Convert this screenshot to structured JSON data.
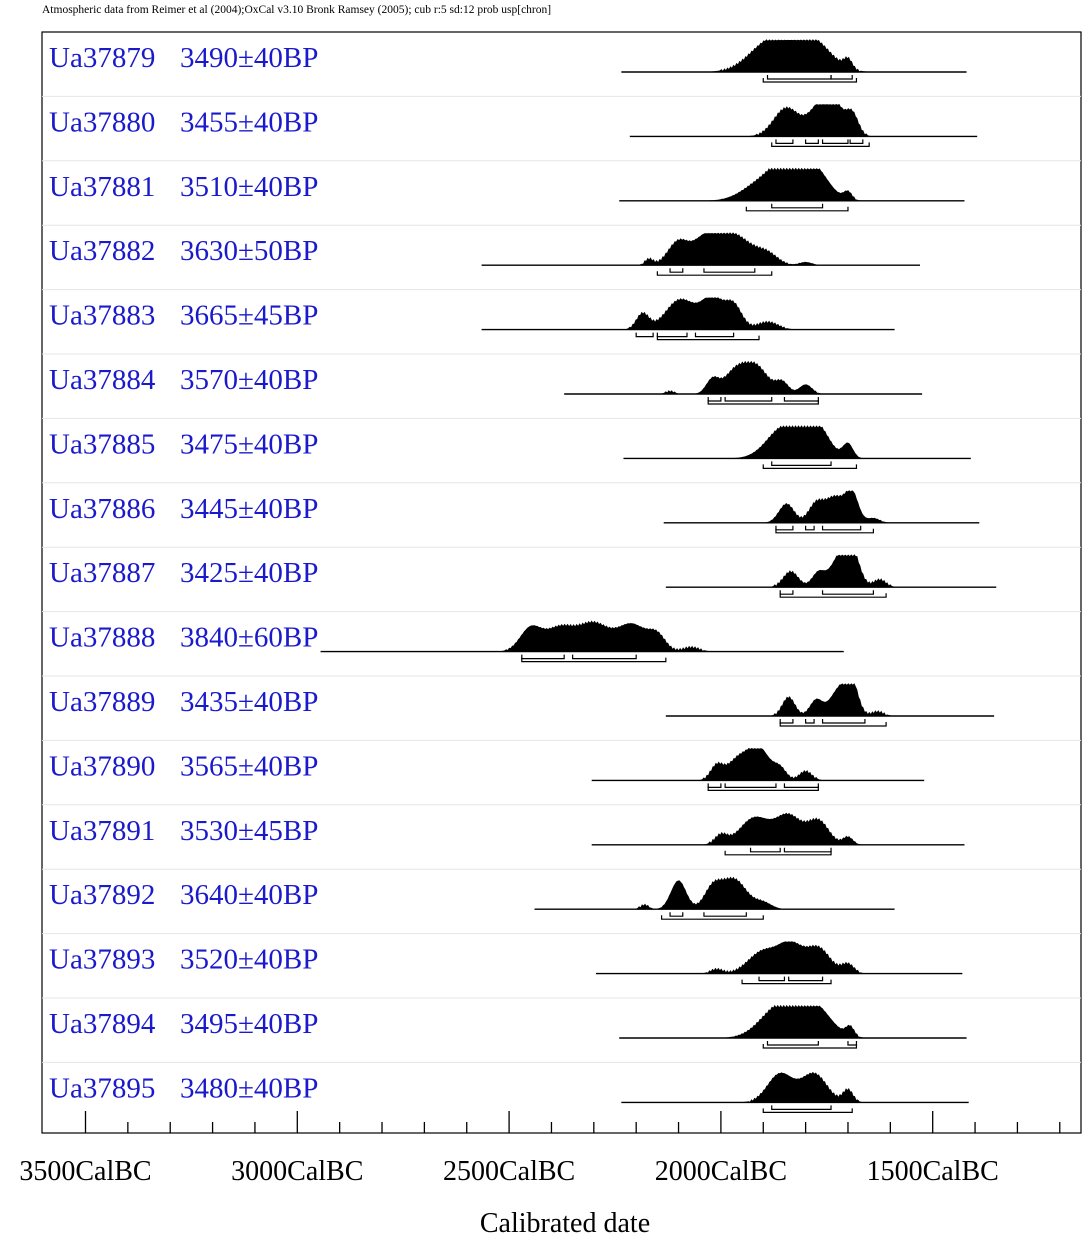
{
  "header": "Atmospheric data from Reimer et al (2004);OxCal v3.10 Bronk Ramsey (2005); cub r:5 sd:12 prob usp[chron]",
  "chart_data": {
    "type": "area",
    "title": "",
    "xlabel": "Calibrated date",
    "ylabel": "",
    "xlim_bc": [
      3600,
      1050
    ],
    "x_ticks": [
      {
        "value": 3500,
        "label": "3500CalBC"
      },
      {
        "value": 3000,
        "label": "3000CalBC"
      },
      {
        "value": 2500,
        "label": "2500CalBC"
      },
      {
        "value": 2000,
        "label": "2000CalBC"
      },
      {
        "value": 1500,
        "label": "1500CalBC"
      }
    ],
    "minor_tick_step_bc": 100,
    "label_color": "#1a1acc",
    "series": [
      {
        "sample": "Ua37879",
        "age": "3490±40BP",
        "line": [
          2235,
          1420
        ],
        "peaks": [
          [
            1880,
            1,
            50
          ],
          [
            1785,
            0.95,
            45
          ],
          [
            1700,
            0.3,
            10
          ]
        ],
        "ranges": [
          [
            1890,
            1740
          ],
          [
            1740,
            1690
          ]
        ],
        "outer": [
          1900,
          1680
        ]
      },
      {
        "sample": "Ua37880",
        "age": "3455±40BP",
        "line": [
          2215,
          1395
        ],
        "peaks": [
          [
            1845,
            0.9,
            30
          ],
          [
            1770,
            0.8,
            25
          ],
          [
            1735,
            1,
            22
          ],
          [
            1690,
            0.7,
            15
          ]
        ],
        "ranges": [
          [
            1870,
            1830
          ],
          [
            1800,
            1770
          ],
          [
            1760,
            1700
          ],
          [
            1695,
            1665
          ]
        ],
        "outer": [
          1880,
          1650
        ]
      },
      {
        "sample": "Ua37881",
        "age": "3510±40BP",
        "line": [
          2240,
          1425
        ],
        "peaks": [
          [
            1900,
            0.6,
            45
          ],
          [
            1840,
            1,
            35
          ],
          [
            1780,
            0.95,
            35
          ],
          [
            1700,
            0.25,
            10
          ]
        ],
        "ranges": [
          [
            1880,
            1760
          ]
        ],
        "outer": [
          1940,
          1700
        ]
      },
      {
        "sample": "Ua37882",
        "age": "3630±50BP",
        "line": [
          2565,
          1530
        ],
        "peaks": [
          [
            2170,
            0.2,
            10
          ],
          [
            2100,
            0.75,
            25
          ],
          [
            2040,
            0.6,
            25
          ],
          [
            1975,
            1,
            45
          ],
          [
            1890,
            0.3,
            25
          ],
          [
            1800,
            0.1,
            15
          ]
        ],
        "ranges": [
          [
            2120,
            2090
          ],
          [
            2040,
            1920
          ]
        ],
        "outer": [
          2150,
          1880
        ]
      },
      {
        "sample": "Ua37883",
        "age": "3665±45BP",
        "line": [
          2565,
          1590
        ],
        "peaks": [
          [
            2185,
            0.5,
            15
          ],
          [
            2095,
            0.95,
            35
          ],
          [
            2020,
            0.95,
            25
          ],
          [
            1970,
            0.75,
            20
          ],
          [
            1890,
            0.25,
            25
          ]
        ],
        "ranges": [
          [
            2200,
            2160
          ],
          [
            2150,
            2080
          ],
          [
            2060,
            1970
          ]
        ],
        "outer": [
          2150,
          1910
        ]
      },
      {
        "sample": "Ua37884",
        "age": "3570±40BP",
        "line": [
          2370,
          1525
        ],
        "peaks": [
          [
            2120,
            0.1,
            10
          ],
          [
            2020,
            0.45,
            15
          ],
          [
            1970,
            0.6,
            25
          ],
          [
            1920,
            0.9,
            30
          ],
          [
            1855,
            0.35,
            15
          ],
          [
            1800,
            0.3,
            15
          ]
        ],
        "ranges": [
          [
            2030,
            2000
          ],
          [
            1990,
            1880
          ],
          [
            1850,
            1770
          ]
        ],
        "outer": [
          2030,
          1770
        ]
      },
      {
        "sample": "Ua37885",
        "age": "3475±40BP",
        "line": [
          2230,
          1410
        ],
        "peaks": [
          [
            1850,
            1,
            40
          ],
          [
            1775,
            1,
            30
          ],
          [
            1700,
            0.45,
            12
          ]
        ],
        "ranges": [
          [
            1880,
            1740
          ]
        ],
        "outer": [
          1900,
          1680
        ]
      },
      {
        "sample": "Ua37886",
        "age": "3445±40BP",
        "line": [
          2135,
          1390
        ],
        "peaks": [
          [
            1845,
            0.6,
            18
          ],
          [
            1775,
            0.6,
            18
          ],
          [
            1730,
            0.8,
            22
          ],
          [
            1690,
            0.9,
            15
          ],
          [
            1640,
            0.15,
            15
          ]
        ],
        "ranges": [
          [
            1870,
            1830
          ],
          [
            1800,
            1780
          ],
          [
            1760,
            1670
          ]
        ],
        "outer": [
          1870,
          1640
        ]
      },
      {
        "sample": "Ua37887",
        "age": "3425±40BP",
        "line": [
          2130,
          1350
        ],
        "peaks": [
          [
            1835,
            0.5,
            18
          ],
          [
            1770,
            0.45,
            15
          ],
          [
            1720,
            0.9,
            22
          ],
          [
            1690,
            1,
            18
          ],
          [
            1625,
            0.25,
            15
          ]
        ],
        "ranges": [
          [
            1860,
            1830
          ],
          [
            1760,
            1640
          ]
        ],
        "outer": [
          1860,
          1610
        ]
      },
      {
        "sample": "Ua37888",
        "age": "3840±60BP",
        "line": [
          2945,
          1710
        ],
        "peaks": [
          [
            2450,
            0.7,
            25
          ],
          [
            2380,
            0.75,
            35
          ],
          [
            2300,
            0.85,
            35
          ],
          [
            2210,
            0.85,
            35
          ],
          [
            2150,
            0.45,
            20
          ],
          [
            2070,
            0.15,
            20
          ]
        ],
        "ranges": [
          [
            2470,
            2370
          ],
          [
            2350,
            2200
          ]
        ],
        "outer": [
          2470,
          2130
        ]
      },
      {
        "sample": "Ua37889",
        "age": "3435±40BP",
        "line": [
          2130,
          1355
        ],
        "peaks": [
          [
            1840,
            0.6,
            15
          ],
          [
            1775,
            0.5,
            15
          ],
          [
            1720,
            0.85,
            22
          ],
          [
            1690,
            0.9,
            15
          ],
          [
            1630,
            0.15,
            15
          ]
        ],
        "ranges": [
          [
            1860,
            1830
          ],
          [
            1800,
            1780
          ],
          [
            1760,
            1660
          ]
        ],
        "outer": [
          1860,
          1610
        ]
      },
      {
        "sample": "Ua37890",
        "age": "3565±40BP",
        "line": [
          2305,
          1520
        ],
        "peaks": [
          [
            2010,
            0.45,
            15
          ],
          [
            1960,
            0.65,
            25
          ],
          [
            1910,
            1,
            25
          ],
          [
            1860,
            0.35,
            15
          ],
          [
            1800,
            0.3,
            15
          ]
        ],
        "ranges": [
          [
            2030,
            2000
          ],
          [
            1990,
            1870
          ],
          [
            1850,
            1770
          ]
        ],
        "outer": [
          2030,
          1770
        ]
      },
      {
        "sample": "Ua37891",
        "age": "3530±45BP",
        "line": [
          2305,
          1425
        ],
        "peaks": [
          [
            2000,
            0.3,
            15
          ],
          [
            1920,
            0.85,
            35
          ],
          [
            1840,
            0.9,
            30
          ],
          [
            1770,
            0.75,
            25
          ],
          [
            1700,
            0.25,
            12
          ]
        ],
        "ranges": [
          [
            1930,
            1860
          ],
          [
            1850,
            1740
          ]
        ],
        "outer": [
          1990,
          1740
        ]
      },
      {
        "sample": "Ua37892",
        "age": "3640±40BP",
        "line": [
          2440,
          1590
        ],
        "peaks": [
          [
            2180,
            0.15,
            10
          ],
          [
            2100,
            0.9,
            18
          ],
          [
            2020,
            0.6,
            20
          ],
          [
            1970,
            0.95,
            30
          ],
          [
            1900,
            0.2,
            20
          ]
        ],
        "ranges": [
          [
            2120,
            2090
          ],
          [
            2040,
            1940
          ]
        ],
        "outer": [
          2140,
          1900
        ]
      },
      {
        "sample": "Ua37893",
        "age": "3520±40BP",
        "line": [
          2295,
          1430
        ],
        "peaks": [
          [
            2010,
            0.15,
            15
          ],
          [
            1900,
            0.7,
            35
          ],
          [
            1835,
            0.85,
            28
          ],
          [
            1770,
            0.8,
            28
          ],
          [
            1700,
            0.3,
            15
          ]
        ],
        "ranges": [
          [
            1910,
            1850
          ],
          [
            1840,
            1760
          ]
        ],
        "outer": [
          1950,
          1740
        ]
      },
      {
        "sample": "Ua37894",
        "age": "3495±40BP",
        "line": [
          2240,
          1420
        ],
        "peaks": [
          [
            1860,
            1,
            45
          ],
          [
            1780,
            0.95,
            40
          ],
          [
            1695,
            0.3,
            10
          ]
        ],
        "ranges": [
          [
            1890,
            1770
          ],
          [
            1700,
            1680
          ]
        ],
        "outer": [
          1900,
          1680
        ]
      },
      {
        "sample": "Ua37895",
        "age": "3480±40BP",
        "line": [
          2235,
          1415
        ],
        "peaks": [
          [
            1860,
            0.9,
            30
          ],
          [
            1780,
            0.9,
            30
          ],
          [
            1700,
            0.4,
            12
          ]
        ],
        "ranges": [
          [
            1880,
            1740
          ]
        ],
        "outer": [
          1900,
          1690
        ]
      }
    ]
  }
}
